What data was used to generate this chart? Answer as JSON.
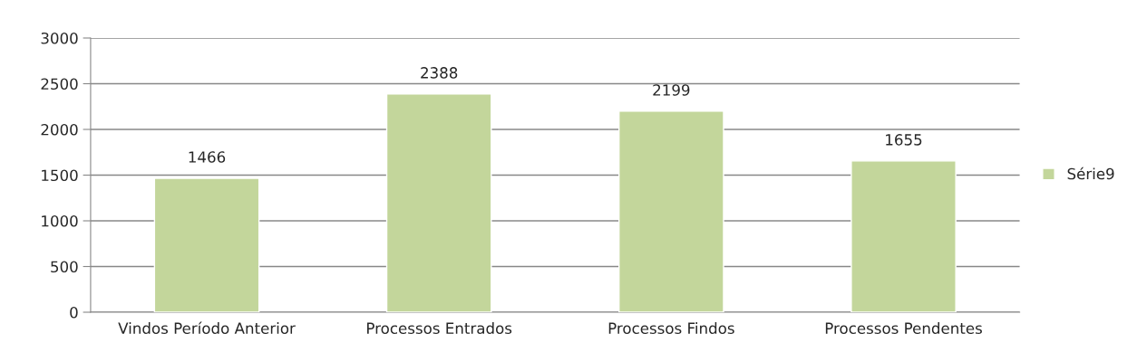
{
  "chart_data": {
    "type": "bar",
    "categories": [
      "Vindos Período Anterior",
      "Processos Entrados",
      "Processos Findos",
      "Processos Pendentes"
    ],
    "series": [
      {
        "name": "Série9",
        "color": "#c3d69b",
        "values": [
          1466,
          2388,
          2199,
          1655
        ]
      }
    ],
    "ylim": [
      0,
      3000
    ],
    "yticks": [
      0,
      500,
      1000,
      1500,
      2000,
      2500,
      3000
    ],
    "grid": "y",
    "legend": "right",
    "data_labels": true
  }
}
